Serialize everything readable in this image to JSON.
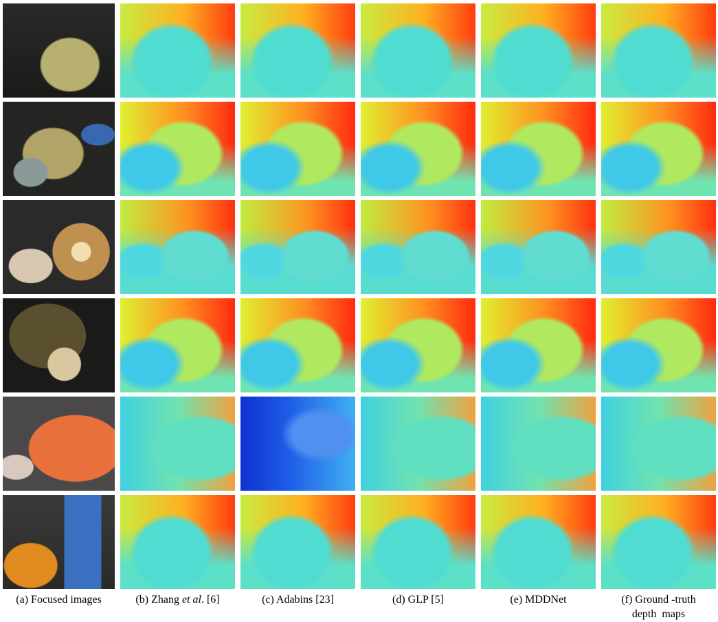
{
  "figure": {
    "captions": [
      [
        "(a) Focused images"
      ],
      [
        "(b) Zhang ",
        "et al",
        ". [6]"
      ],
      [
        "(c) Adabins [23]"
      ],
      [
        "(d) GLP [5]"
      ],
      [
        "(e) MDDNet"
      ],
      [
        "(f) Ground -truth",
        "depth  maps"
      ]
    ]
  }
}
